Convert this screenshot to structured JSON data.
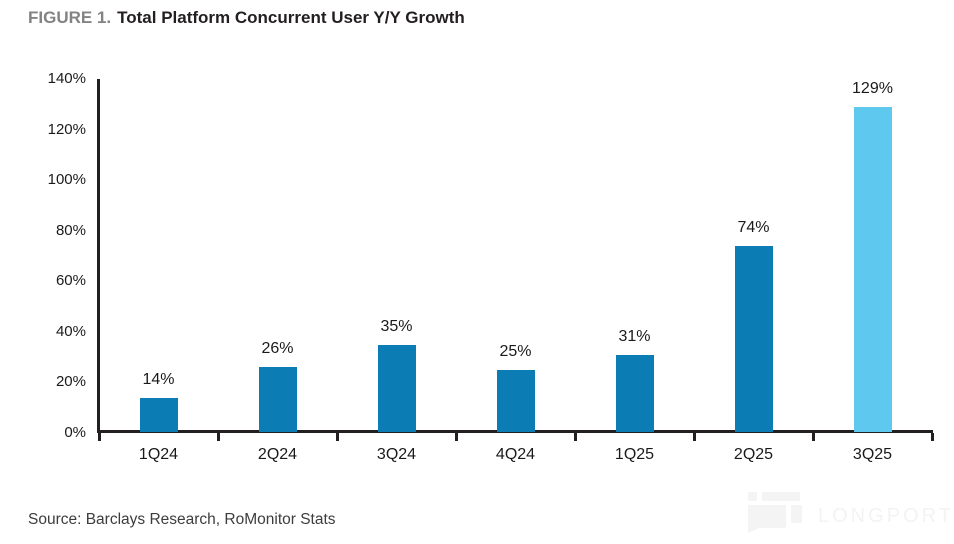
{
  "header": {
    "figure_label": "FIGURE 1.",
    "title": "Total Platform Concurrent User Y/Y Growth"
  },
  "chart_data": {
    "type": "bar",
    "title": "FIGURE 1. Total Platform Concurrent User Y/Y Growth",
    "categories": [
      "1Q24",
      "2Q24",
      "3Q24",
      "4Q24",
      "1Q25",
      "2Q25",
      "3Q25"
    ],
    "values": [
      14,
      26,
      35,
      25,
      31,
      74,
      129
    ],
    "value_labels": [
      "14%",
      "26%",
      "35%",
      "25%",
      "31%",
      "74%",
      "129%"
    ],
    "xlabel": "",
    "ylabel": "",
    "ylim": [
      0,
      140
    ],
    "yticks": [
      0,
      20,
      40,
      60,
      80,
      100,
      120,
      140
    ],
    "ytick_suffix": "%",
    "grid": false,
    "legend_position": "none",
    "bar_color": "#0c7db4",
    "highlight_color": "#5ec8ef",
    "highlight_index": 6,
    "axis_color": "#231f20"
  },
  "footer": {
    "source": "Source: Barclays Research, RoMonitor Stats"
  },
  "watermark": {
    "text": "LONGPORT"
  }
}
